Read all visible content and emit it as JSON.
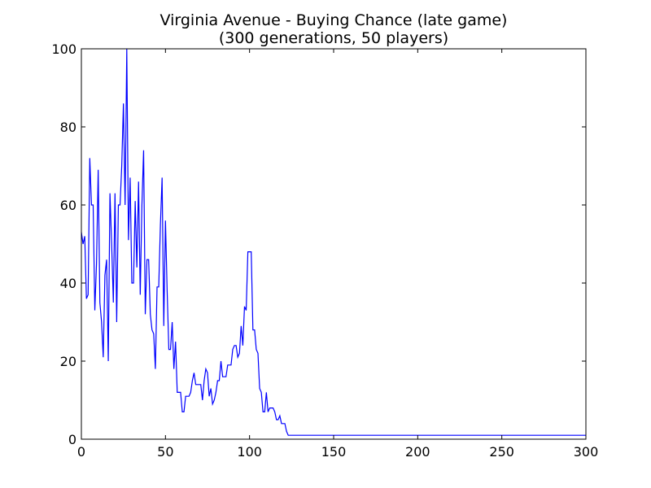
{
  "chart_data": {
    "type": "line",
    "title": "Virginia Avenue - Buying Chance (late game)",
    "subtitle": "(300 generations, 50 players)",
    "xlabel": "",
    "ylabel": "",
    "xlim": [
      0,
      300
    ],
    "ylim": [
      0,
      100
    ],
    "xticks": [
      0,
      50,
      100,
      150,
      200,
      250,
      300
    ],
    "yticks": [
      0,
      20,
      40,
      60,
      80,
      100
    ],
    "grid": false,
    "series": [
      {
        "color": "#0000ff",
        "points": [
          [
            0,
            53
          ],
          [
            1,
            50
          ],
          [
            2,
            52
          ],
          [
            3,
            36
          ],
          [
            4,
            37
          ],
          [
            5,
            72
          ],
          [
            6,
            60
          ],
          [
            7,
            60
          ],
          [
            8,
            33
          ],
          [
            9,
            45
          ],
          [
            10,
            69
          ],
          [
            11,
            35
          ],
          [
            12,
            30
          ],
          [
            13,
            21
          ],
          [
            14,
            42
          ],
          [
            15,
            46
          ],
          [
            16,
            20
          ],
          [
            17,
            63
          ],
          [
            18,
            50
          ],
          [
            19,
            35
          ],
          [
            20,
            63
          ],
          [
            21,
            30
          ],
          [
            22,
            60
          ],
          [
            23,
            60
          ],
          [
            24,
            70
          ],
          [
            25,
            86
          ],
          [
            26,
            60
          ],
          [
            27,
            100
          ],
          [
            28,
            51
          ],
          [
            29,
            67
          ],
          [
            30,
            40
          ],
          [
            31,
            40
          ],
          [
            32,
            61
          ],
          [
            33,
            44
          ],
          [
            34,
            66
          ],
          [
            35,
            37
          ],
          [
            36,
            60
          ],
          [
            37,
            74
          ],
          [
            38,
            32
          ],
          [
            39,
            46
          ],
          [
            40,
            46
          ],
          [
            41,
            32
          ],
          [
            42,
            28
          ],
          [
            43,
            27
          ],
          [
            44,
            18
          ],
          [
            45,
            39
          ],
          [
            46,
            39
          ],
          [
            47,
            55
          ],
          [
            48,
            67
          ],
          [
            49,
            29
          ],
          [
            50,
            56
          ],
          [
            51,
            38
          ],
          [
            52,
            23
          ],
          [
            53,
            23
          ],
          [
            54,
            30
          ],
          [
            55,
            18
          ],
          [
            56,
            25
          ],
          [
            57,
            12
          ],
          [
            58,
            12
          ],
          [
            59,
            12
          ],
          [
            60,
            7
          ],
          [
            61,
            7
          ],
          [
            62,
            11
          ],
          [
            63,
            11
          ],
          [
            64,
            11
          ],
          [
            65,
            12
          ],
          [
            66,
            15
          ],
          [
            67,
            17
          ],
          [
            68,
            14
          ],
          [
            69,
            14
          ],
          [
            70,
            14
          ],
          [
            71,
            14
          ],
          [
            72,
            10
          ],
          [
            73,
            15
          ],
          [
            74,
            18
          ],
          [
            75,
            17
          ],
          [
            76,
            11
          ],
          [
            77,
            13
          ],
          [
            78,
            9
          ],
          [
            79,
            10
          ],
          [
            80,
            12
          ],
          [
            81,
            15
          ],
          [
            82,
            15
          ],
          [
            83,
            20
          ],
          [
            84,
            16
          ],
          [
            85,
            16
          ],
          [
            86,
            16
          ],
          [
            87,
            19
          ],
          [
            88,
            19
          ],
          [
            89,
            19
          ],
          [
            90,
            23
          ],
          [
            91,
            24
          ],
          [
            92,
            24
          ],
          [
            93,
            21
          ],
          [
            94,
            22
          ],
          [
            95,
            29
          ],
          [
            96,
            24
          ],
          [
            97,
            34
          ],
          [
            98,
            33
          ],
          [
            99,
            48
          ],
          [
            100,
            48
          ],
          [
            101,
            48
          ],
          [
            102,
            28
          ],
          [
            103,
            28
          ],
          [
            104,
            23
          ],
          [
            105,
            22
          ],
          [
            106,
            13
          ],
          [
            107,
            12
          ],
          [
            108,
            7
          ],
          [
            109,
            7
          ],
          [
            110,
            12
          ],
          [
            111,
            7
          ],
          [
            112,
            8
          ],
          [
            113,
            8
          ],
          [
            114,
            8
          ],
          [
            115,
            7
          ],
          [
            116,
            5
          ],
          [
            117,
            5
          ],
          [
            118,
            6
          ],
          [
            119,
            4
          ],
          [
            120,
            4
          ],
          [
            121,
            4
          ],
          [
            122,
            2
          ],
          [
            123,
            1
          ],
          [
            124,
            1
          ],
          [
            130,
            1
          ],
          [
            150,
            1
          ],
          [
            200,
            1
          ],
          [
            250,
            1
          ],
          [
            300,
            1
          ]
        ]
      }
    ]
  }
}
